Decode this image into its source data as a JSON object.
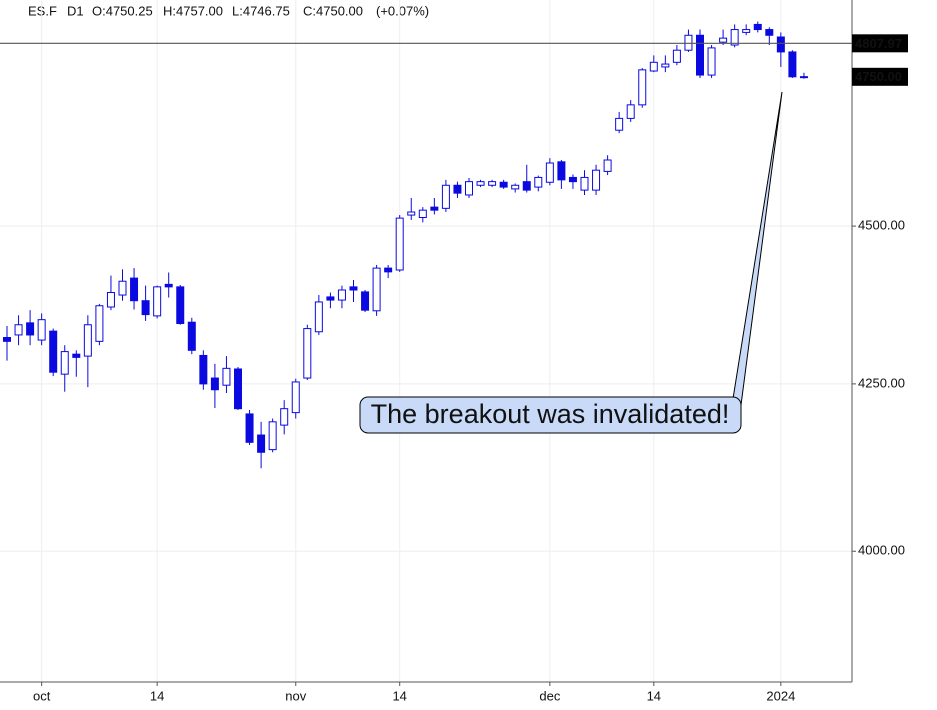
{
  "chart_data": {
    "type": "candlestick",
    "symbol": "ES.F",
    "timeframe": "D1",
    "ohlc_labels": [
      "O:4750.25",
      "H:4757.00",
      "L:4746.75",
      "C:4750.00"
    ],
    "change": "(+0.07%)",
    "categories": [
      null,
      null,
      null,
      "oct",
      null,
      null,
      null,
      null,
      null,
      null,
      null,
      null,
      null,
      "14",
      null,
      null,
      null,
      null,
      null,
      null,
      null,
      null,
      null,
      null,
      null,
      "nov",
      null,
      null,
      null,
      null,
      null,
      null,
      null,
      null,
      "14",
      null,
      null,
      null,
      null,
      null,
      null,
      null,
      null,
      null,
      null,
      null,
      null,
      "dec",
      null,
      null,
      null,
      null,
      null,
      null,
      null,
      null,
      "14",
      null,
      null,
      null,
      null,
      null,
      null,
      null,
      null,
      null,
      null,
      "2024",
      null,
      null
    ],
    "open": [
      4322,
      4326,
      4345,
      4318,
      4332,
      4265,
      4296,
      4293,
      4316,
      4370,
      4389,
      4416,
      4380,
      4356,
      4406,
      4402,
      4346,
      4294,
      4259,
      4248,
      4273,
      4204,
      4172,
      4150,
      4187,
      4206,
      4259,
      4331,
      4386,
      4381,
      4402,
      4394,
      4364,
      4432,
      4429,
      4518,
      4514,
      4531,
      4529,
      4567,
      4551,
      4567,
      4567,
      4572,
      4561,
      4573,
      4564,
      4572,
      4606,
      4580,
      4559,
      4559,
      4590,
      4659,
      4679,
      4702,
      4760,
      4767,
      4775,
      4796,
      4822,
      4753,
      4810,
      4805,
      4827,
      4841,
      4832,
      4819,
      4793,
      4750.25
    ],
    "high": [
      4340,
      4357,
      4365,
      4360,
      4336,
      4310,
      4302,
      4357,
      4375,
      4420,
      4430,
      4432,
      4404,
      4404,
      4425,
      4405,
      4353,
      4302,
      4281,
      4293,
      4276,
      4210,
      4192,
      4197,
      4225,
      4258,
      4342,
      4389,
      4393,
      4404,
      4413,
      4397,
      4437,
      4437,
      4518,
      4546,
      4531,
      4546,
      4576,
      4573,
      4579,
      4576,
      4576,
      4576,
      4570,
      4601,
      4583,
      4612,
      4609,
      4585,
      4592,
      4601,
      4617,
      4690,
      4710,
      4765,
      4787,
      4787,
      4805,
      4832,
      4832,
      4805,
      4832,
      4841,
      4841,
      4846,
      4836,
      4827,
      4796,
      4757
    ],
    "low": [
      4286,
      4310,
      4310,
      4310,
      4262,
      4238,
      4261,
      4245,
      4310,
      4365,
      4380,
      4366,
      4348,
      4352,
      4385,
      4342,
      4296,
      4241,
      4213,
      4236,
      4210,
      4157,
      4122,
      4146,
      4173,
      4197,
      4256,
      4326,
      4368,
      4368,
      4378,
      4362,
      4356,
      4416,
      4426,
      4510,
      4506,
      4519,
      4523,
      4546,
      4546,
      4564,
      4564,
      4561,
      4555,
      4555,
      4557,
      4567,
      4561,
      4561,
      4551,
      4551,
      4584,
      4654,
      4673,
      4697,
      4758,
      4758,
      4770,
      4793,
      4748,
      4748,
      4805,
      4801,
      4822,
      4827,
      4805,
      4767,
      4748,
      4746.75
    ],
    "close": [
      4316,
      4342,
      4326,
      4350,
      4268,
      4300,
      4291,
      4342,
      4372,
      4393,
      4411,
      4380,
      4358,
      4402,
      4402,
      4344,
      4302,
      4250,
      4241,
      4274,
      4212,
      4161,
      4146,
      4192,
      4212,
      4253,
      4336,
      4378,
      4381,
      4397,
      4397,
      4365,
      4432,
      4426,
      4513,
      4523,
      4526,
      4526,
      4567,
      4554,
      4573,
      4573,
      4573,
      4564,
      4567,
      4559,
      4580,
      4604,
      4576,
      4573,
      4580,
      4592,
      4609,
      4679,
      4702,
      4762,
      4775,
      4772,
      4796,
      4822,
      4753,
      4800,
      4817,
      4832,
      4832,
      4832,
      4822,
      4793,
      4750,
      4750
    ],
    "color": "#0a0ae0",
    "log_scale": true,
    "grid": true,
    "ylim": [
      3815,
      4884
    ],
    "yticks": [
      {
        "value": 4000,
        "label": "4000.00"
      },
      {
        "value": 4250,
        "label": "4250.00"
      },
      {
        "value": 4500,
        "label": "4500.00"
      }
    ],
    "price_markers": [
      {
        "value": 4807.97,
        "label": "4807.97"
      },
      {
        "value": 4750,
        "label": "4750.00"
      }
    ],
    "annotation": "The breakout was invalidated!"
  }
}
